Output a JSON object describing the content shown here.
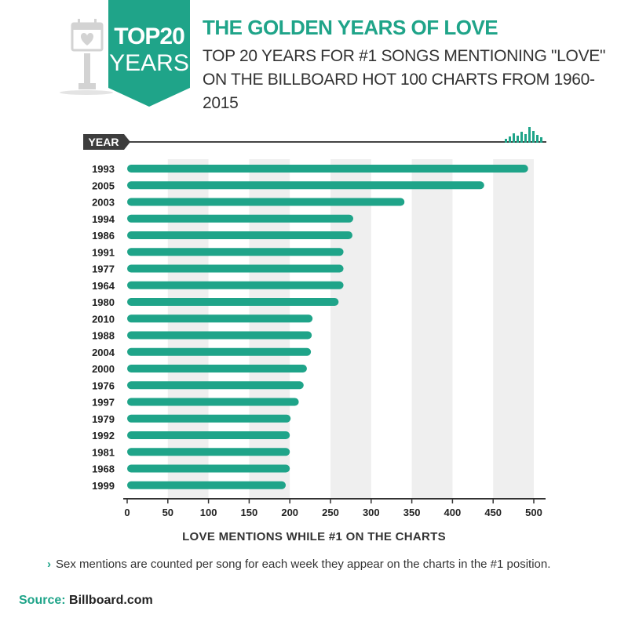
{
  "badge": {
    "line1": "TOP20",
    "line2": "YEARS"
  },
  "header": {
    "title": "THE GOLDEN YEARS OF LOVE",
    "subtitle": "TOP 20 YEARS FOR #1 SONGS MENTIONING \"LOVE\" ON THE BILLBOARD HOT 100 CHARTS FROM 1960-2015"
  },
  "year_label": "YEAR",
  "note": "Sex mentions are counted per song for each week they appear on the charts in the #1 position.",
  "source": {
    "label": "Source:",
    "value": "Billboard.com"
  },
  "colors": {
    "accent": "#1fa489",
    "band": "#efefef",
    "dark": "#3d3d3d"
  },
  "chart_data": {
    "type": "bar",
    "orientation": "horizontal",
    "categories": [
      "1993",
      "2005",
      "2003",
      "1994",
      "1986",
      "1991",
      "1977",
      "1964",
      "1980",
      "2010",
      "1988",
      "2004",
      "2000",
      "1976",
      "1997",
      "1979",
      "1992",
      "1981",
      "1968",
      "1999"
    ],
    "values": [
      493,
      439,
      341,
      278,
      277,
      266,
      266,
      266,
      260,
      228,
      227,
      226,
      221,
      217,
      211,
      201,
      200,
      200,
      200,
      195
    ],
    "xlabel": "LOVE MENTIONS WHILE #1 ON THE CHARTS",
    "ylabel": "YEAR",
    "xlim": [
      0,
      500
    ],
    "xticks": [
      0,
      50,
      100,
      150,
      200,
      250,
      300,
      350,
      400,
      450,
      500
    ],
    "grid": "alternating vertical bands"
  }
}
